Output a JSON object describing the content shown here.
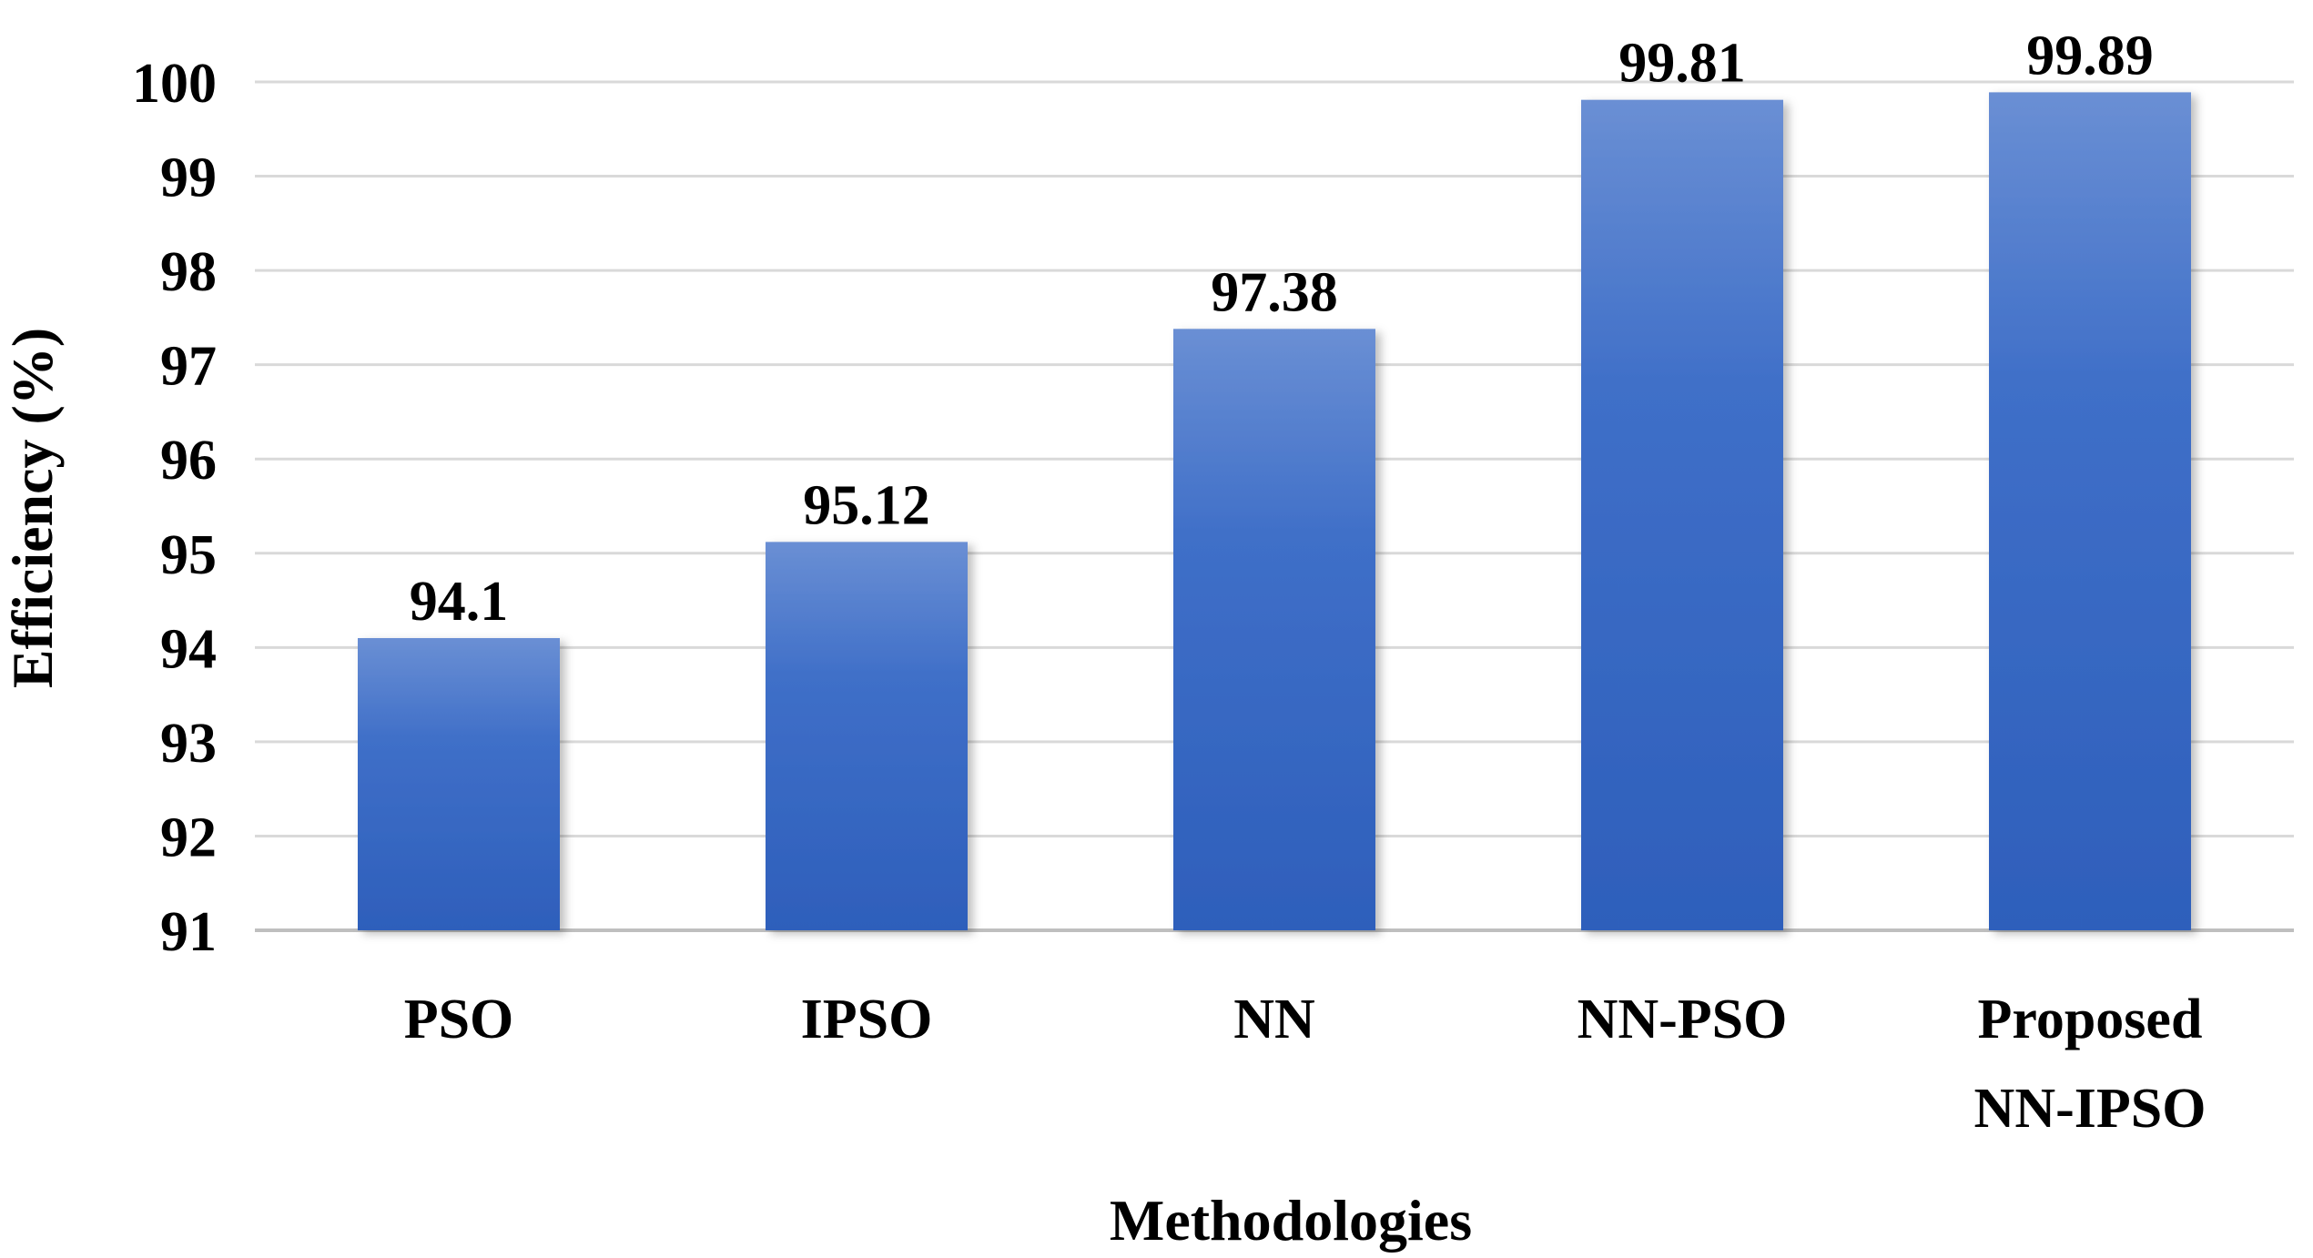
{
  "chart_data": {
    "type": "bar",
    "title": "",
    "xlabel": "Methodologies",
    "ylabel": "Efficiency (%)",
    "categories": [
      [
        "PSO"
      ],
      [
        "IPSO"
      ],
      [
        "NN"
      ],
      [
        "NN-PSO"
      ],
      [
        "Proposed",
        "NN-IPSO"
      ]
    ],
    "values": [
      94.1,
      95.12,
      97.38,
      99.81,
      99.89
    ],
    "value_labels": [
      "94.1",
      "95.12",
      "97.38",
      "99.81",
      "99.89"
    ],
    "ylim": [
      91,
      100
    ],
    "yticks": [
      91,
      92,
      93,
      94,
      95,
      96,
      97,
      98,
      99,
      100
    ],
    "grid": true,
    "legend": "none",
    "colors": {
      "bar_top": "#6a8fd4",
      "bar_mid": "#3f6fc8",
      "bar_bottom": "#2e5fbb",
      "gridline": "#d9d9d9",
      "text": "#000000"
    }
  }
}
